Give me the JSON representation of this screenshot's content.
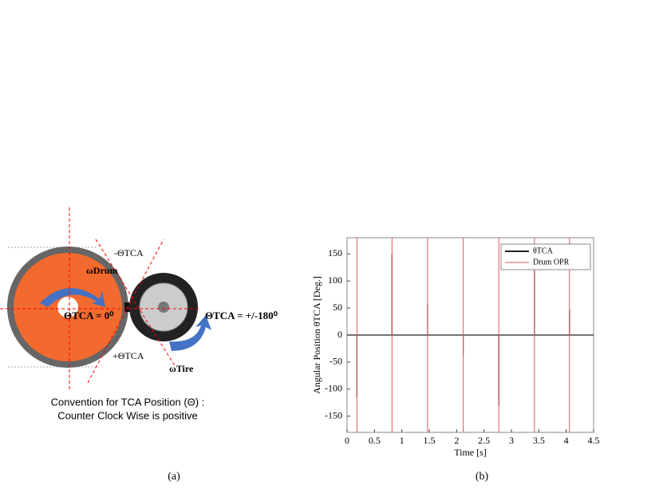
{
  "diagram": {
    "omega_drum": "ωDrum",
    "theta_zero": "ΘTCA = 0⁰",
    "minus_theta": "-ΘTCA",
    "plus_theta": "+ΘTCA",
    "theta_180": "ΘTCA = +/-180⁰",
    "omega_tire": "ωTire",
    "caption_line1": "Convention for TCA Position (Θ) :",
    "caption_line2": "Counter Clock Wise is positive"
  },
  "captions": [
    "(a)",
    "(b)"
  ],
  "chart_data": {
    "type": "line",
    "xlabel": "Time [s]",
    "ylabel": "Angular Position θTCA [Deg.]",
    "xlim": [
      0,
      4.5
    ],
    "xticks": [
      0,
      0.5,
      1,
      1.5,
      2,
      2.5,
      3,
      3.5,
      4,
      4.5
    ],
    "ylim": [
      -180,
      180
    ],
    "yticks": [
      -150,
      -100,
      -50,
      0,
      50,
      100,
      150
    ],
    "legend": "upper right",
    "series": [
      {
        "name": "θTCA",
        "color": "#222222",
        "x": [
          0,
          0.18,
          0.18,
          0.18,
          0.82,
          0.82,
          0.82,
          1.47,
          1.47,
          1.47,
          2.12,
          2.12,
          2.12,
          2.77,
          2.77,
          2.77,
          3.42,
          3.42,
          3.42,
          4.06,
          4.06,
          4.06,
          4.5
        ],
        "values": [
          0,
          0,
          -115,
          0,
          0,
          150,
          0,
          0,
          58,
          0,
          0,
          -37,
          0,
          0,
          -130,
          0,
          0,
          128,
          0,
          0,
          47,
          0,
          0
        ]
      },
      {
        "name": "Drum OPR",
        "color": "#e05a5a",
        "x": [
          0.18,
          0.82,
          1.47,
          2.12,
          2.77,
          3.42,
          4.06
        ]
      }
    ]
  }
}
